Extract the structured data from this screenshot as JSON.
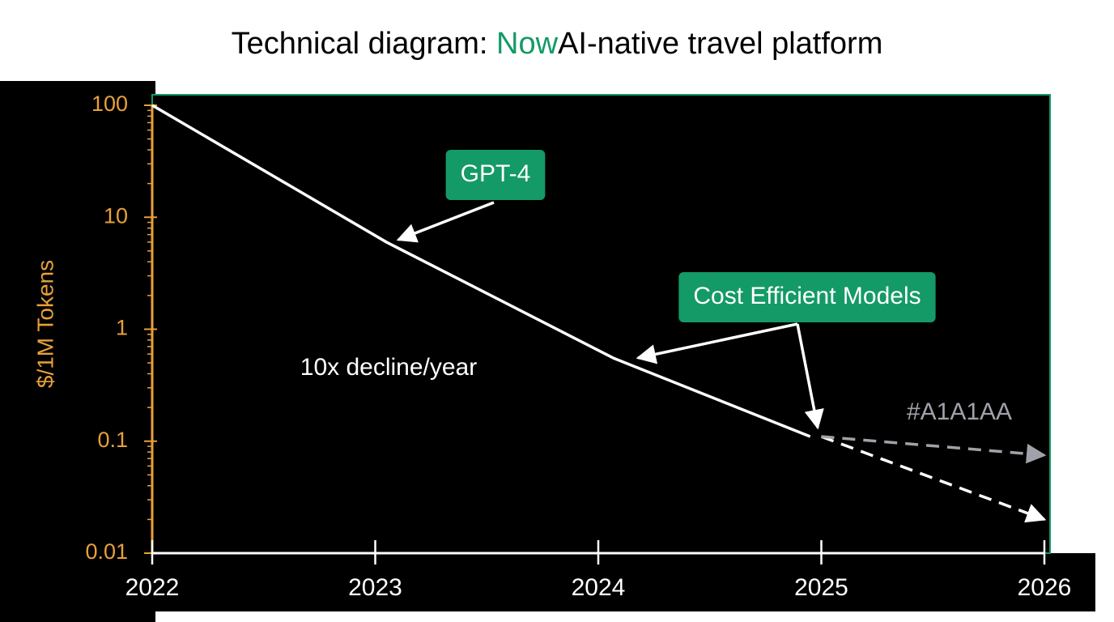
{
  "chart_data": {
    "type": "line",
    "title": "Technical diagram: ",
    "title_highlight": "Now",
    "title_rest": "AI-native travel platform",
    "y_label": "$/1M Tokens",
    "log_y": true,
    "xlim": [
      2022,
      2026
    ],
    "ylim": [
      0.01,
      100
    ],
    "xticks": [
      2022,
      2023,
      2024,
      2025,
      2026
    ],
    "yticks": [
      100,
      10,
      1,
      0.1,
      0.01
    ],
    "axis_color": "#e8a03a",
    "border_color": "#149a66",
    "series": [
      {
        "color": "#ffffff",
        "dashed": false,
        "x": [
          2022,
          2023.05,
          2024.07,
          2024.95
        ],
        "values": [
          100,
          6,
          0.55,
          0.11
        ]
      },
      {
        "color": "#ffffff",
        "dashed": true,
        "x": [
          2025,
          2026
        ],
        "values": [
          0.11,
          0.02
        ]
      },
      {
        "color": "#a1a1aa",
        "dashed": true,
        "x": [
          2025,
          2026
        ],
        "values": [
          0.11,
          0.075
        ]
      }
    ],
    "annotations": [
      {
        "text": "GPT-4",
        "boxed": true
      },
      {
        "text": "Cost Efficient Models",
        "boxed": true
      },
      {
        "text": "10x decline/year",
        "boxed": false
      },
      {
        "text": "#A1A1AA",
        "boxed": false,
        "color": "#a1a1aa"
      }
    ]
  }
}
